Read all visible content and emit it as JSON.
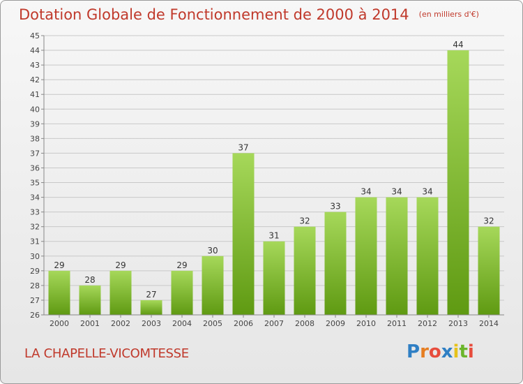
{
  "header": {
    "title": "Dotation Globale de Fonctionnement de 2000 à 2014",
    "unit": "(en milliers d'€)"
  },
  "footer": {
    "commune": "LA CHAPELLE-VICOMTESSE",
    "brand_letters": [
      "P",
      "r",
      "o",
      "x",
      "i",
      "t",
      "i"
    ],
    "brand_colors": [
      "#2f7fc4",
      "#e67e22",
      "#e74c3c",
      "#2f7fc4",
      "#e6c21a",
      "#6bb52b",
      "#e74c3c"
    ]
  },
  "chart_data": {
    "type": "bar",
    "title": "Dotation Globale de Fonctionnement de 2000 à 2014",
    "categories": [
      "2000",
      "2001",
      "2002",
      "2003",
      "2004",
      "2005",
      "2006",
      "2007",
      "2008",
      "2009",
      "2010",
      "2011",
      "2012",
      "2013",
      "2014"
    ],
    "values": [
      29,
      28,
      29,
      27,
      29,
      30,
      37,
      31,
      32,
      33,
      34,
      34,
      34,
      44,
      32
    ],
    "ylim": [
      26,
      45
    ],
    "yticks": [
      26,
      27,
      28,
      29,
      30,
      31,
      32,
      33,
      34,
      35,
      36,
      37,
      38,
      39,
      40,
      41,
      42,
      43,
      44,
      45
    ],
    "grid": true,
    "bar_color_top": "#a6d85a",
    "bar_color_bottom": "#5f9a12"
  }
}
